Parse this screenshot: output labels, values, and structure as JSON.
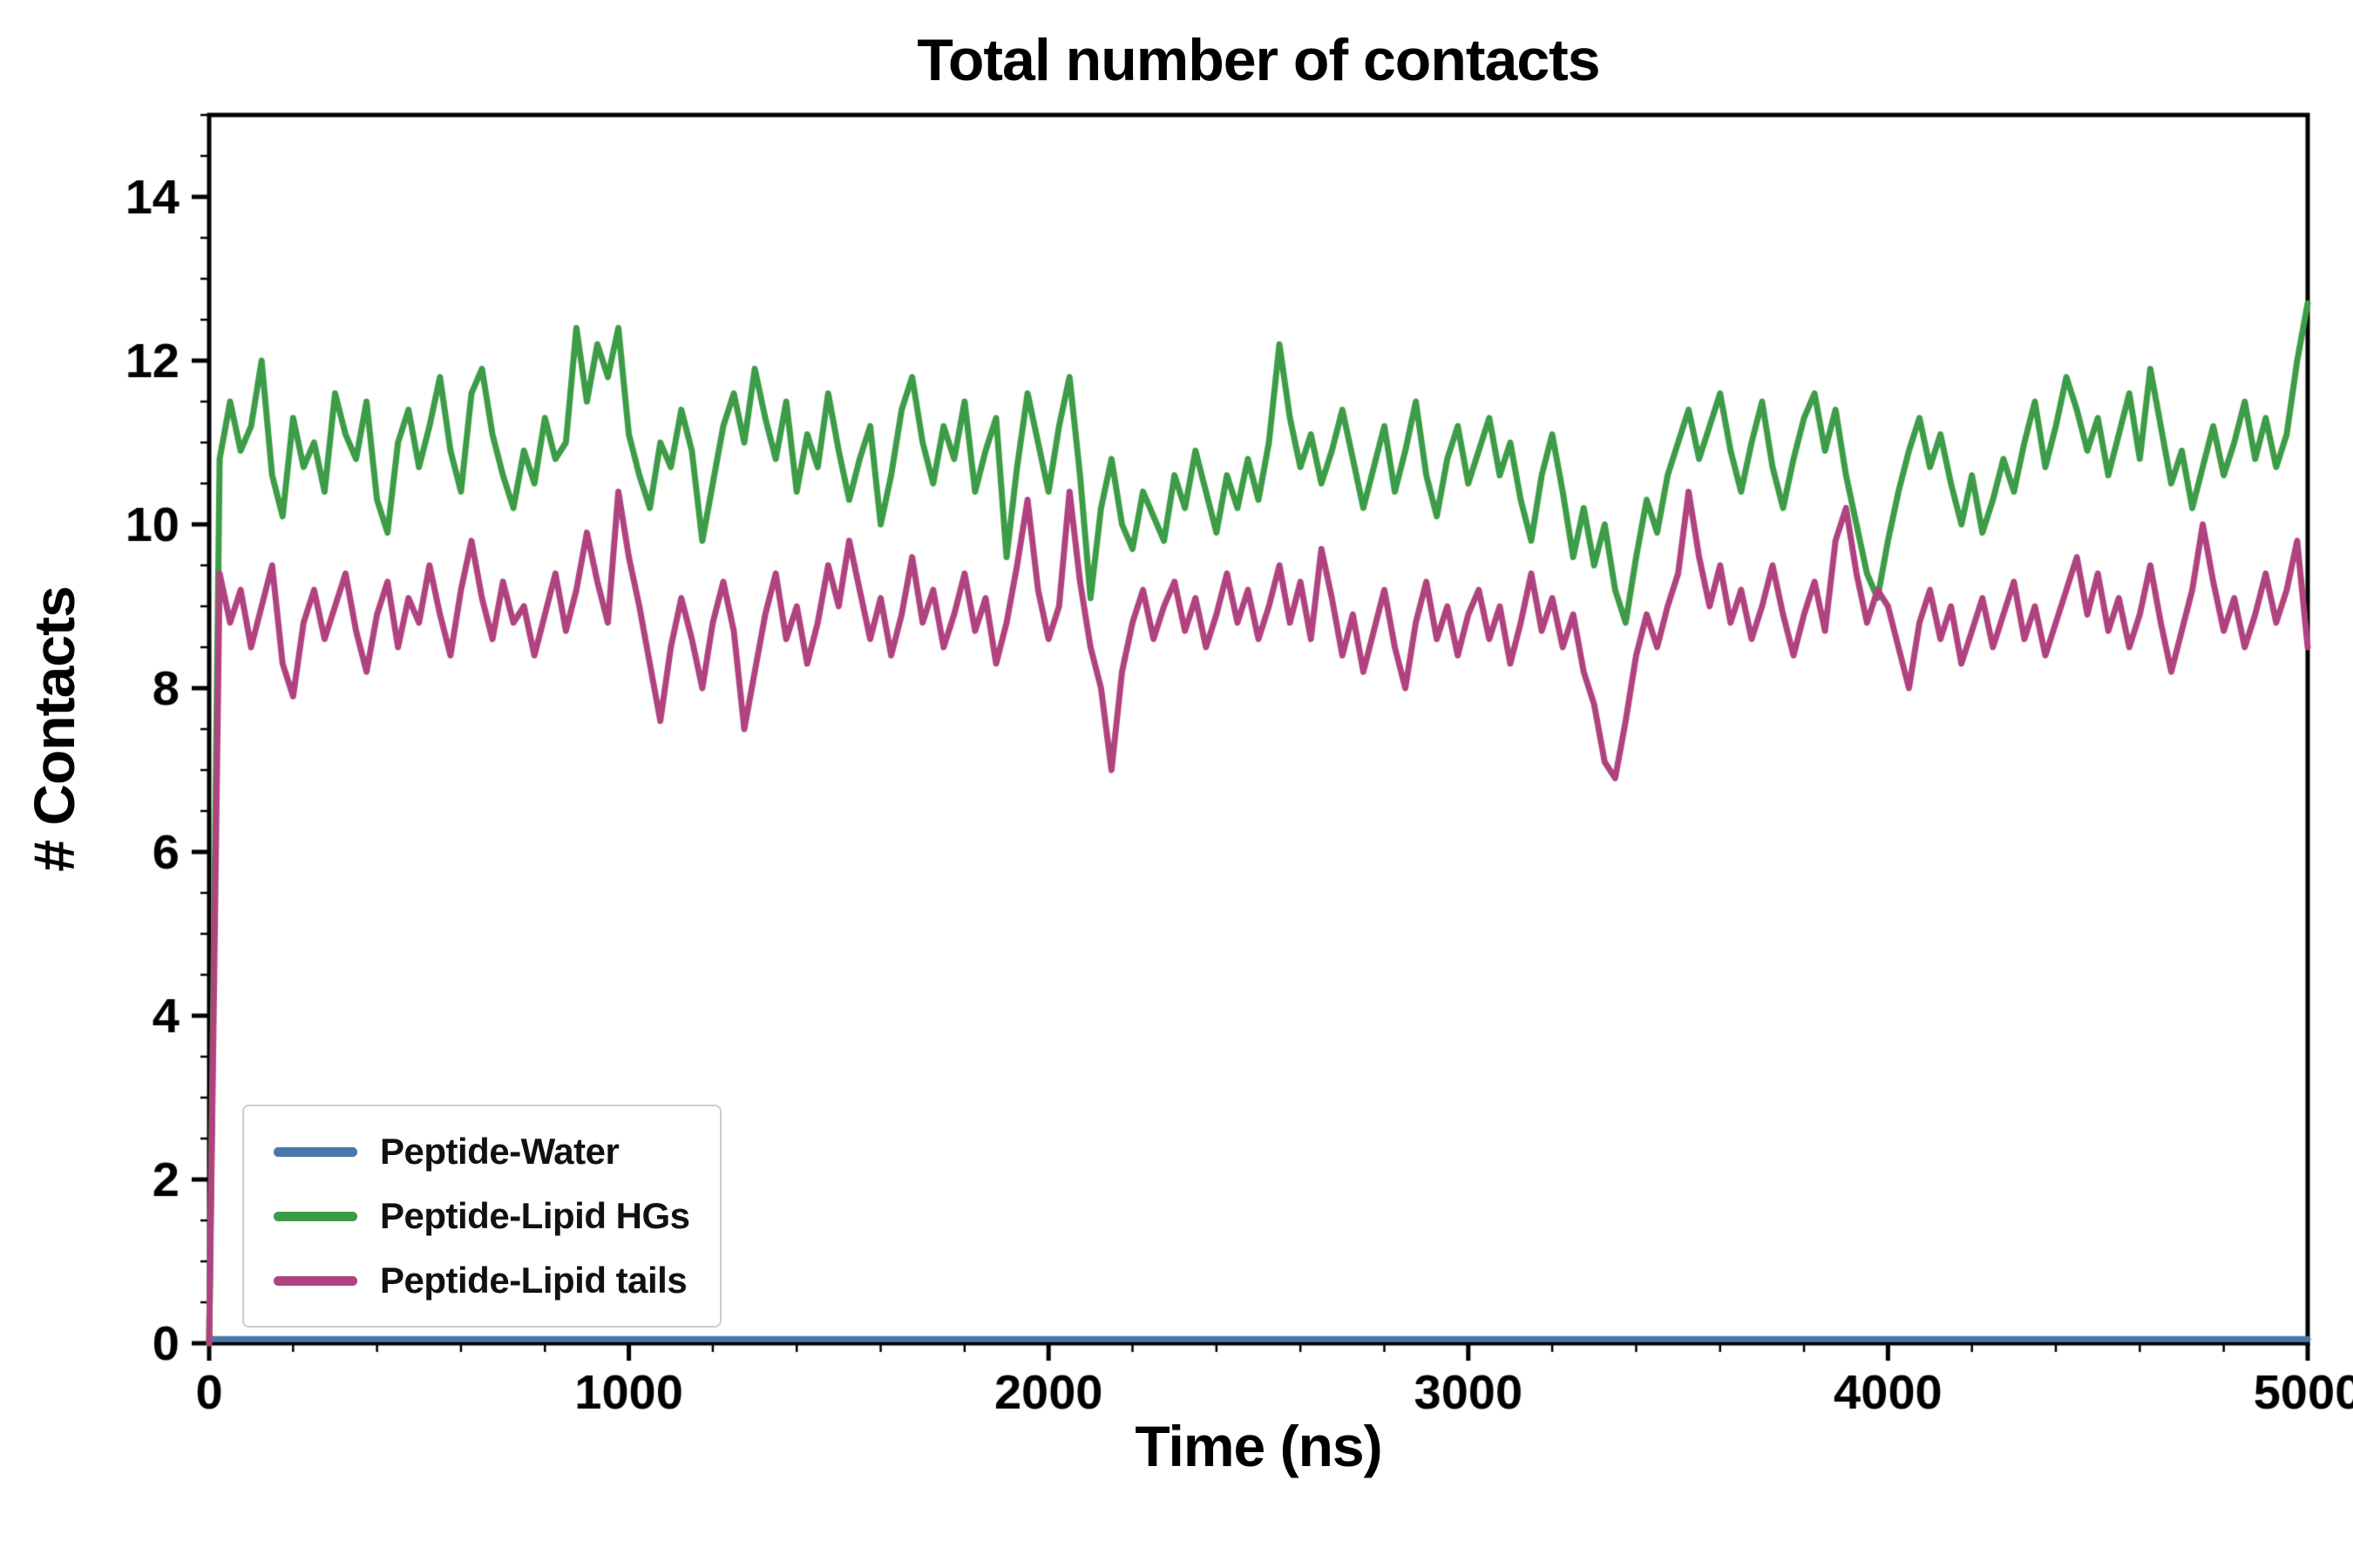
{
  "chart_data": {
    "type": "line",
    "title": "Total number of contacts",
    "xlabel": "Time (ns)",
    "ylabel": "# Contacts",
    "xlim": [
      0,
      5000
    ],
    "ylim": [
      0,
      15
    ],
    "xticks": [
      0,
      1000,
      2000,
      3000,
      4000,
      5000
    ],
    "yticks": [
      0,
      2,
      4,
      6,
      8,
      10,
      12,
      14
    ],
    "x_minor_step": 200,
    "y_minor_step": 0.5,
    "grid": false,
    "legend_position": "lower-left",
    "line_width": 7,
    "x": {
      "start": 0,
      "step": 25,
      "count": 201
    },
    "series": [
      {
        "name": "Peptide-Water",
        "color": "#4878a8",
        "constant": 0.05
      },
      {
        "name": "Peptide-Lipid HGs",
        "color": "#3d9c47",
        "values": [
          0.0,
          10.8,
          11.5,
          10.9,
          11.2,
          12.0,
          10.6,
          10.1,
          11.3,
          10.7,
          11.0,
          10.4,
          11.6,
          11.1,
          10.8,
          11.5,
          10.3,
          9.9,
          11.0,
          11.4,
          10.7,
          11.2,
          11.8,
          10.9,
          10.4,
          11.6,
          11.9,
          11.1,
          10.6,
          10.2,
          10.9,
          10.5,
          11.3,
          10.8,
          11.0,
          12.4,
          11.5,
          12.2,
          11.8,
          12.4,
          11.1,
          10.6,
          10.2,
          11.0,
          10.7,
          11.4,
          10.9,
          9.8,
          10.5,
          11.2,
          11.6,
          11.0,
          11.9,
          11.3,
          10.8,
          11.5,
          10.4,
          11.1,
          10.7,
          11.6,
          10.9,
          10.3,
          10.8,
          11.2,
          10.0,
          10.6,
          11.4,
          11.8,
          11.0,
          10.5,
          11.2,
          10.8,
          11.5,
          10.4,
          10.9,
          11.3,
          9.6,
          10.7,
          11.6,
          11.0,
          10.4,
          11.2,
          11.8,
          10.6,
          9.1,
          10.2,
          10.8,
          10.0,
          9.7,
          10.4,
          10.1,
          9.8,
          10.6,
          10.2,
          10.9,
          10.4,
          9.9,
          10.6,
          10.2,
          10.8,
          10.3,
          11.0,
          12.2,
          11.3,
          10.7,
          11.1,
          10.5,
          10.9,
          11.4,
          10.8,
          10.2,
          10.7,
          11.2,
          10.4,
          10.9,
          11.5,
          10.6,
          10.1,
          10.8,
          11.2,
          10.5,
          10.9,
          11.3,
          10.6,
          11.0,
          10.3,
          9.8,
          10.6,
          11.1,
          10.4,
          9.6,
          10.2,
          9.5,
          10.0,
          9.2,
          8.8,
          9.6,
          10.3,
          9.9,
          10.6,
          11.0,
          11.4,
          10.8,
          11.2,
          11.6,
          10.9,
          10.4,
          11.0,
          11.5,
          10.7,
          10.2,
          10.8,
          11.3,
          11.6,
          10.9,
          11.4,
          10.6,
          10.0,
          9.4,
          9.1,
          9.8,
          10.4,
          10.9,
          11.3,
          10.7,
          11.1,
          10.5,
          10.0,
          10.6,
          9.9,
          10.3,
          10.8,
          10.4,
          11.0,
          11.5,
          10.7,
          11.2,
          11.8,
          11.4,
          10.9,
          11.3,
          10.6,
          11.1,
          11.6,
          10.8,
          11.9,
          11.2,
          10.5,
          10.9,
          10.2,
          10.7,
          11.2,
          10.6,
          11.0,
          11.5,
          10.8,
          11.3,
          10.7,
          11.1,
          12.0,
          12.7
        ]
      },
      {
        "name": "Peptide-Lipid tails",
        "color": "#b0437f",
        "values": [
          0.0,
          9.4,
          8.8,
          9.2,
          8.5,
          9.0,
          9.5,
          8.3,
          7.9,
          8.8,
          9.2,
          8.6,
          9.0,
          9.4,
          8.7,
          8.2,
          8.9,
          9.3,
          8.5,
          9.1,
          8.8,
          9.5,
          8.9,
          8.4,
          9.2,
          9.8,
          9.1,
          8.6,
          9.3,
          8.8,
          9.0,
          8.4,
          8.9,
          9.4,
          8.7,
          9.2,
          9.9,
          9.3,
          8.8,
          10.4,
          9.6,
          9.0,
          8.3,
          7.6,
          8.5,
          9.1,
          8.6,
          8.0,
          8.8,
          9.3,
          8.7,
          7.5,
          8.2,
          8.9,
          9.4,
          8.6,
          9.0,
          8.3,
          8.8,
          9.5,
          9.0,
          9.8,
          9.2,
          8.6,
          9.1,
          8.4,
          8.9,
          9.6,
          8.8,
          9.2,
          8.5,
          8.9,
          9.4,
          8.7,
          9.1,
          8.3,
          8.8,
          9.5,
          10.3,
          9.2,
          8.6,
          9.0,
          10.4,
          9.3,
          8.5,
          8.0,
          7.0,
          8.2,
          8.8,
          9.2,
          8.6,
          9.0,
          9.3,
          8.7,
          9.1,
          8.5,
          8.9,
          9.4,
          8.8,
          9.2,
          8.6,
          9.0,
          9.5,
          8.8,
          9.3,
          8.6,
          9.7,
          9.1,
          8.4,
          8.9,
          8.2,
          8.7,
          9.2,
          8.5,
          8.0,
          8.8,
          9.3,
          8.6,
          9.0,
          8.4,
          8.9,
          9.2,
          8.6,
          9.0,
          8.3,
          8.8,
          9.4,
          8.7,
          9.1,
          8.5,
          8.9,
          8.2,
          7.8,
          7.1,
          6.9,
          7.6,
          8.4,
          8.9,
          8.5,
          9.0,
          9.4,
          10.4,
          9.6,
          9.0,
          9.5,
          8.8,
          9.2,
          8.6,
          9.0,
          9.5,
          8.9,
          8.4,
          8.9,
          9.3,
          8.7,
          9.8,
          10.2,
          9.4,
          8.8,
          9.2,
          9.0,
          8.5,
          8.0,
          8.8,
          9.2,
          8.6,
          9.0,
          8.3,
          8.7,
          9.1,
          8.5,
          8.9,
          9.3,
          8.6,
          9.0,
          8.4,
          8.8,
          9.2,
          9.6,
          8.9,
          9.4,
          8.7,
          9.1,
          8.5,
          8.9,
          9.5,
          8.8,
          8.2,
          8.7,
          9.2,
          10.0,
          9.3,
          8.7,
          9.1,
          8.5,
          8.9,
          9.4,
          8.8,
          9.2,
          9.8,
          8.5
        ]
      }
    ]
  }
}
